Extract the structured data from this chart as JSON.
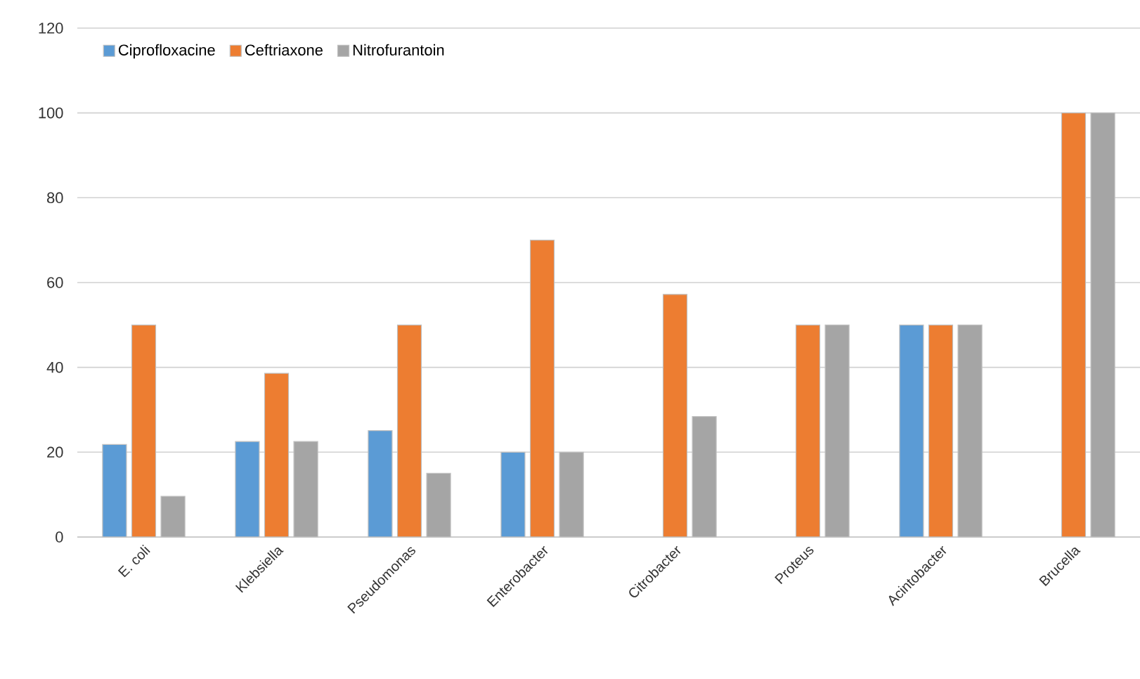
{
  "chart_data": {
    "type": "bar",
    "categories": [
      "E. coli",
      "Klebsiella",
      "Pseudomonas",
      "Enterobacter",
      "Citrobacter",
      "Proteus",
      "Acintobacter",
      "Brucella"
    ],
    "series": [
      {
        "name": "Ciprofloxacine",
        "color": "#5b9bd5",
        "values": [
          21.8,
          22.5,
          25.1,
          20,
          null,
          null,
          50,
          null
        ]
      },
      {
        "name": "Ceftriaxone",
        "color": "#ed7d31",
        "values": [
          50,
          38.6,
          50,
          70,
          57.2,
          50,
          50,
          100
        ]
      },
      {
        "name": "Nitrofurantoin",
        "color": "#a5a5a5",
        "values": [
          9.6,
          22.5,
          15,
          20,
          28.4,
          50,
          50,
          100
        ]
      }
    ],
    "ylim": [
      0,
      120
    ],
    "yticks": [
      0,
      20,
      40,
      60,
      80,
      100,
      120
    ],
    "grid": "y",
    "legend": "top left"
  }
}
